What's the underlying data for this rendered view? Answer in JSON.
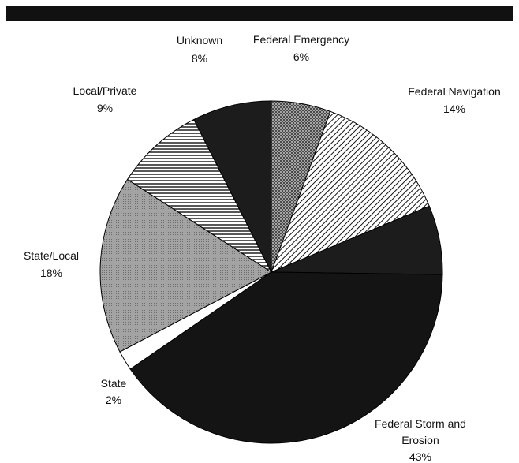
{
  "chart_data": {
    "type": "pie",
    "title": "",
    "slices": [
      {
        "label": "Federal Emergency",
        "percent_label": "6%",
        "value": 6,
        "fill": "crosshatch"
      },
      {
        "label": "Federal Navigation",
        "percent_label": "14%",
        "value": 14,
        "fill": "diagonal-hatch"
      },
      {
        "label": "",
        "percent_label": "",
        "value": 7,
        "fill": "solid-dark"
      },
      {
        "label": "Federal Storm and Erosion",
        "percent_label": "43%",
        "value": 43,
        "fill": "solid-black"
      },
      {
        "label": "State",
        "percent_label": "2%",
        "value": 2,
        "fill": "white"
      },
      {
        "label": "State/Local",
        "percent_label": "18%",
        "value": 18,
        "fill": "stipple-gray"
      },
      {
        "label": "Local/Private",
        "percent_label": "9%",
        "value": 9,
        "fill": "horizontal-lines"
      },
      {
        "label": "Unknown",
        "percent_label": "8%",
        "value": 8,
        "fill": "solid-dark"
      }
    ],
    "legend": "none (direct labels)"
  },
  "colors": {
    "top_bar": "#111111",
    "solid_black": "#141414",
    "solid_dark": "#1c1c1c",
    "stipple_gray": "#9a9a9a",
    "outline": "#000000"
  }
}
